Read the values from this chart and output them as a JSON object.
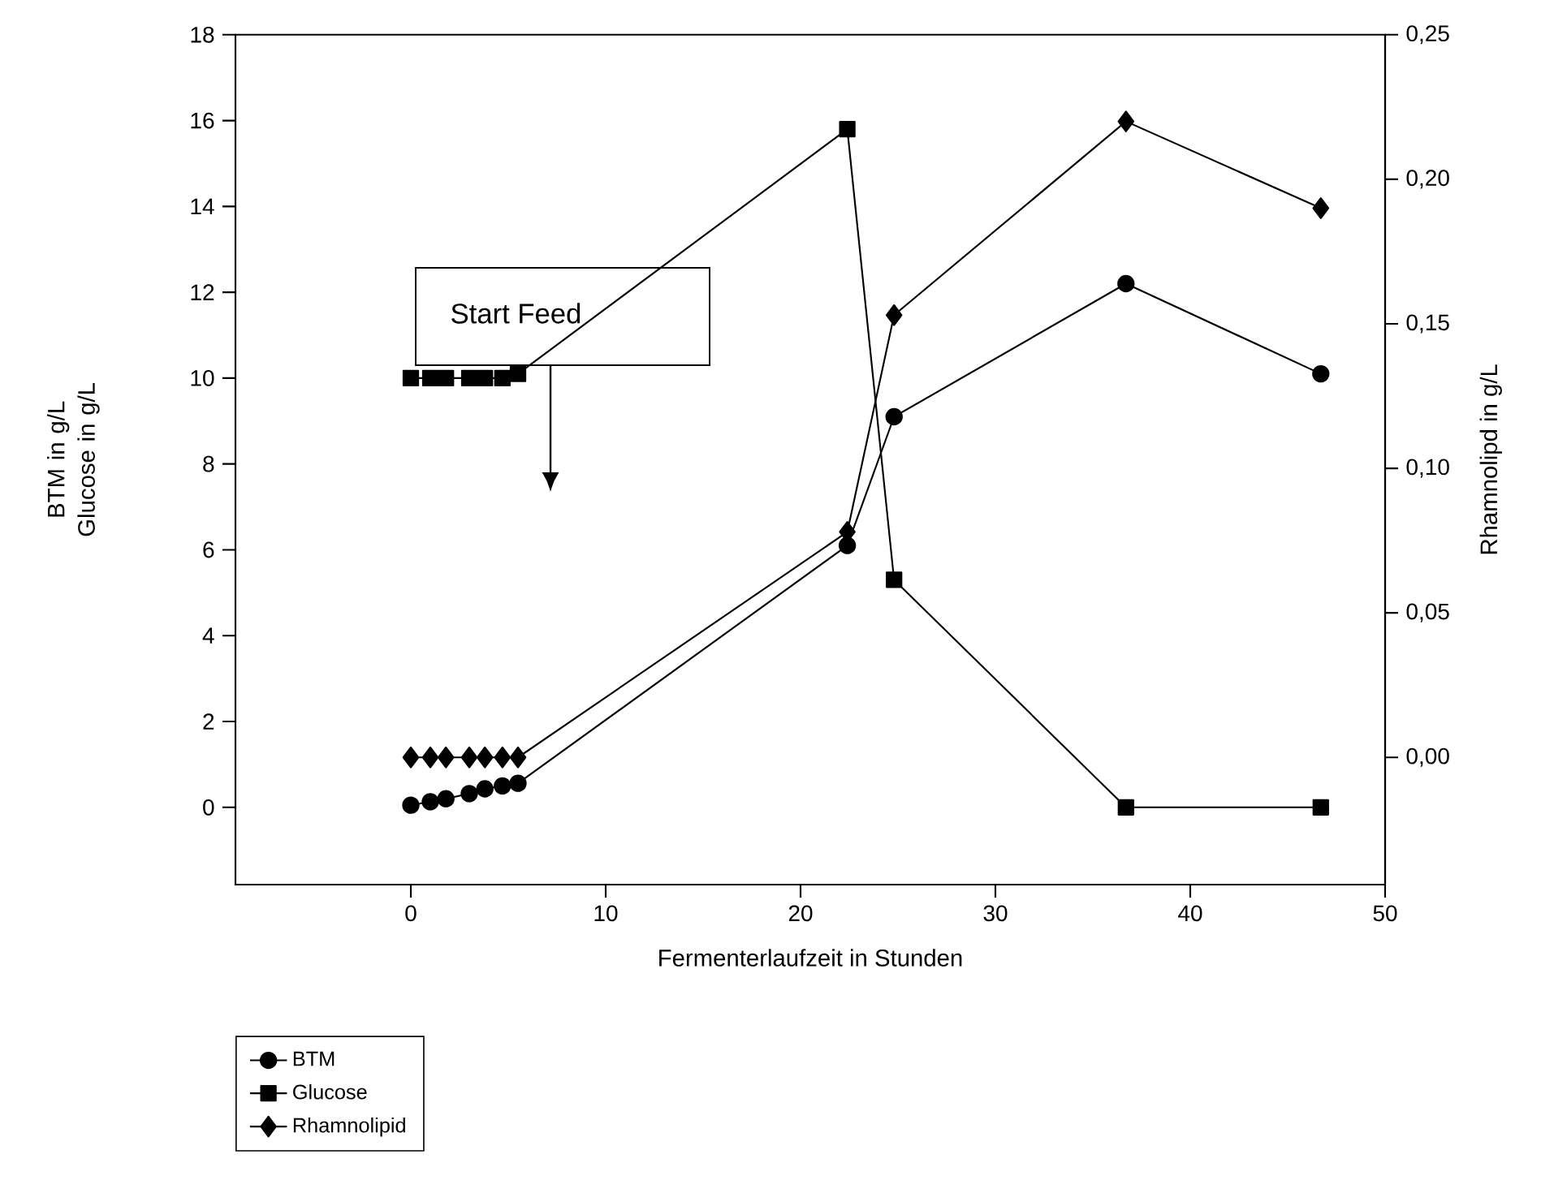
{
  "chart_data": {
    "type": "line",
    "xlabel": "Fermenterlaufzeit in Stunden",
    "ylabel": "BTM in g/L Glucose in g/L",
    "y2label": "Rhamnolipd in g/L",
    "x": [
      0,
      1,
      1.8,
      3,
      3.8,
      4.7,
      5.5,
      22.4,
      24.8,
      36.7,
      46.7
    ],
    "series": [
      {
        "name": "BTM",
        "color": "#000000",
        "marker": "circle",
        "values": [
          0.05,
          0.13,
          0.2,
          0.32,
          0.43,
          0.5,
          0.56,
          6.1,
          9.1,
          12.2,
          10.1
        ]
      },
      {
        "name": "Glucose",
        "color": "#000000",
        "marker": "square",
        "values": [
          10,
          10,
          10,
          10,
          10,
          10,
          10.1,
          15.8,
          5.3,
          0,
          0
        ]
      },
      {
        "name": "Rhamnolipid",
        "color": "#000000",
        "marker": "diamond",
        "axis": "y2",
        "values": [
          0,
          0,
          0,
          0,
          0,
          0,
          0,
          0.078,
          0.153,
          0.22,
          0.19
        ]
      }
    ],
    "xlim": [
      -9,
      50
    ],
    "ylim": [
      -1.8,
      18
    ],
    "y2lim": [
      -0.044,
      0.25
    ],
    "xticks": [
      0,
      10,
      20,
      30,
      40,
      50
    ],
    "yticks": [
      0,
      2,
      4,
      6,
      8,
      10,
      12,
      14,
      16,
      18
    ],
    "y2ticks": [
      {
        "value": 0,
        "label": "0,00"
      },
      {
        "value": 0.05,
        "label": "0,05"
      },
      {
        "value": 0.1,
        "label": "0,10"
      },
      {
        "value": 0.15,
        "label": "0,15"
      },
      {
        "value": 0.2,
        "label": "0,20"
      },
      {
        "value": 0.25,
        "label": "0,25"
      }
    ],
    "annotations": [
      "Start Feed"
    ],
    "line_style": "solid",
    "grid": false,
    "legend": "bottom left"
  }
}
